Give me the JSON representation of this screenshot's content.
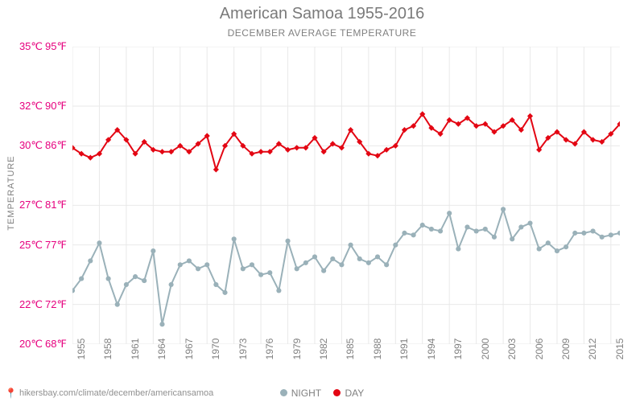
{
  "title": "American Samoa 1955-2016",
  "subtitle": "DECEMBER AVERAGE TEMPERATURE",
  "y_axis_label": "TEMPERATURE",
  "footer_url": "hikersbay.com/climate/december/americansamoa",
  "chart": {
    "type": "line",
    "background_color": "#ffffff",
    "grid_color": "#e9e9e9",
    "title_color": "#7a7a7a",
    "title_fontsize": 20,
    "subtitle_fontsize": 12,
    "label_fontsize": 12,
    "tick_fontsize": 12,
    "tick_color": "#e6007e",
    "x_tick_color": "#808080",
    "ylim_c": [
      20,
      35
    ],
    "y_ticks_c": [
      20,
      22,
      25,
      27,
      30,
      32,
      35
    ],
    "y_ticks_c_labels": [
      "20℃",
      "22℃",
      "25℃",
      "27℃",
      "30℃",
      "32℃",
      "35℃"
    ],
    "y_ticks_f_labels": [
      "68℉",
      "72℉",
      "77℉",
      "81℉",
      "86℉",
      "90℉",
      "95℉"
    ],
    "x_years_all": [
      1955,
      1956,
      1957,
      1958,
      1959,
      1960,
      1961,
      1962,
      1963,
      1964,
      1965,
      1966,
      1967,
      1968,
      1969,
      1970,
      1971,
      1972,
      1973,
      1974,
      1975,
      1976,
      1977,
      1978,
      1979,
      1980,
      1981,
      1982,
      1983,
      1984,
      1985,
      1986,
      1987,
      1988,
      1989,
      1990,
      1991,
      1992,
      1993,
      1994,
      1995,
      1996,
      1997,
      1998,
      1999,
      2000,
      2001,
      2002,
      2003,
      2004,
      2005,
      2006,
      2007,
      2008,
      2009,
      2010,
      2011,
      2012,
      2013,
      2014,
      2015,
      2016
    ],
    "x_ticks": [
      1955,
      1958,
      1961,
      1964,
      1967,
      1970,
      1973,
      1976,
      1979,
      1982,
      1985,
      1988,
      1991,
      1994,
      1997,
      2000,
      2003,
      2006,
      2009,
      2012,
      2015
    ],
    "series": {
      "day": {
        "label": "DAY",
        "color": "#e30613",
        "marker": "diamond",
        "marker_size": 5,
        "line_width": 2,
        "values_c": [
          29.9,
          29.6,
          29.4,
          29.6,
          30.3,
          30.8,
          30.3,
          29.6,
          30.2,
          29.8,
          29.7,
          29.7,
          30.0,
          29.7,
          30.1,
          30.5,
          28.8,
          30.0,
          30.6,
          30.0,
          29.6,
          29.7,
          29.7,
          30.1,
          29.8,
          29.9,
          29.9,
          30.4,
          29.7,
          30.1,
          29.9,
          30.8,
          30.2,
          29.6,
          29.5,
          29.8,
          30.0,
          30.8,
          31.0,
          31.6,
          30.9,
          30.6,
          31.3,
          31.1,
          31.4,
          31.0,
          31.1,
          30.7,
          31.0,
          31.3,
          30.8,
          31.5,
          29.8,
          30.4,
          30.7,
          30.3,
          30.1,
          30.7,
          30.3,
          30.2,
          30.6,
          31.1
        ]
      },
      "night": {
        "label": "NIGHT",
        "color": "#9ab1b9",
        "marker": "circle",
        "marker_size": 4,
        "line_width": 2,
        "values_c": [
          22.7,
          23.3,
          24.2,
          25.1,
          23.3,
          22.0,
          23.0,
          23.4,
          23.2,
          24.7,
          21.0,
          23.0,
          24.0,
          24.2,
          23.8,
          24.0,
          23.0,
          22.6,
          25.3,
          23.8,
          24.0,
          23.5,
          23.6,
          22.7,
          25.2,
          23.8,
          24.1,
          24.4,
          23.7,
          24.3,
          24.0,
          25.0,
          24.3,
          24.1,
          24.4,
          24.0,
          25.0,
          25.6,
          25.5,
          26.0,
          25.8,
          25.7,
          26.6,
          24.8,
          25.9,
          25.7,
          25.8,
          25.4,
          26.8,
          25.3,
          25.9,
          26.1,
          24.8,
          25.1,
          24.7,
          24.9,
          25.6,
          25.6,
          25.7,
          25.4,
          25.5,
          25.6
        ]
      }
    }
  },
  "legend": {
    "night": "NIGHT",
    "day": "DAY"
  }
}
